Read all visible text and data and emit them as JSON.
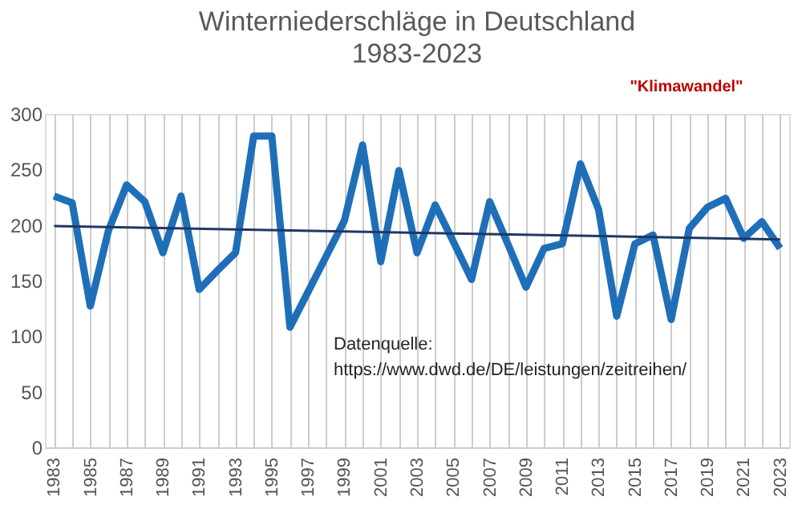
{
  "chart_data": {
    "type": "line",
    "title": "Winterniederschläge  in Deutschland",
    "subtitle": "1983-2023",
    "x": [
      1983,
      1984,
      1985,
      1986,
      1987,
      1988,
      1989,
      1990,
      1991,
      1992,
      1993,
      1994,
      1995,
      1996,
      1997,
      1998,
      1999,
      2000,
      2001,
      2002,
      2003,
      2004,
      2005,
      2006,
      2007,
      2008,
      2009,
      2010,
      2011,
      2012,
      2013,
      2014,
      2015,
      2016,
      2017,
      2018,
      2019,
      2020,
      2021,
      2022,
      2023
    ],
    "series": [
      {
        "color": "#1f6fb8",
        "line_style": "solid",
        "values": [
          226,
          220,
          127,
          195,
          236,
          221,
          175,
          226,
          142,
          159,
          175,
          280,
          280,
          108,
          140,
          172,
          204,
          272,
          167,
          249,
          175,
          218,
          185,
          151,
          221,
          183,
          144,
          179,
          183,
          255,
          214,
          118,
          183,
          191,
          115,
          197,
          216,
          224,
          188,
          203,
          179
        ]
      },
      {
        "type": "line",
        "color": "#1f3864",
        "line_style": "solid",
        "x": [
          1983,
          2023
        ],
        "values": [
          199,
          187
        ]
      }
    ],
    "xlim": [
      1982.5,
      2023.5
    ],
    "xticks": [
      1983,
      {
        "value": 1984,
        "label": null
      },
      1985,
      {
        "value": 1986,
        "label": null
      },
      1987,
      {
        "value": 1988,
        "label": null
      },
      1989,
      {
        "value": 1990,
        "label": null
      },
      1991,
      {
        "value": 1992,
        "label": null
      },
      1993,
      {
        "value": 1994,
        "label": null
      },
      1995,
      {
        "value": 1996,
        "label": null
      },
      1997,
      {
        "value": 1998,
        "label": null
      },
      1999,
      {
        "value": 2000,
        "label": null
      },
      2001,
      {
        "value": 2002,
        "label": null
      },
      2003,
      {
        "value": 2004,
        "label": null
      },
      2005,
      {
        "value": 2006,
        "label": null
      },
      2007,
      {
        "value": 2008,
        "label": null
      },
      2009,
      {
        "value": 2010,
        "label": null
      },
      2011,
      {
        "value": 2012,
        "label": null
      },
      2013,
      {
        "value": 2014,
        "label": null
      },
      2015,
      {
        "value": 2016,
        "label": null
      },
      2017,
      {
        "value": 2018,
        "label": null
      },
      2019,
      {
        "value": 2020,
        "label": null
      },
      2021,
      {
        "value": 2022,
        "label": null
      },
      2023
    ],
    "ylim": [
      0,
      300
    ],
    "yticks": [
      0,
      50,
      100,
      150,
      200,
      250,
      300
    ],
    "grid": "x",
    "legend": false,
    "marker": "none",
    "annotations": [
      "\"Klimawandel\"",
      "Datenquelle:\nhttps://www.dwd.de/DE/leistungen/zeitreihen/"
    ]
  }
}
